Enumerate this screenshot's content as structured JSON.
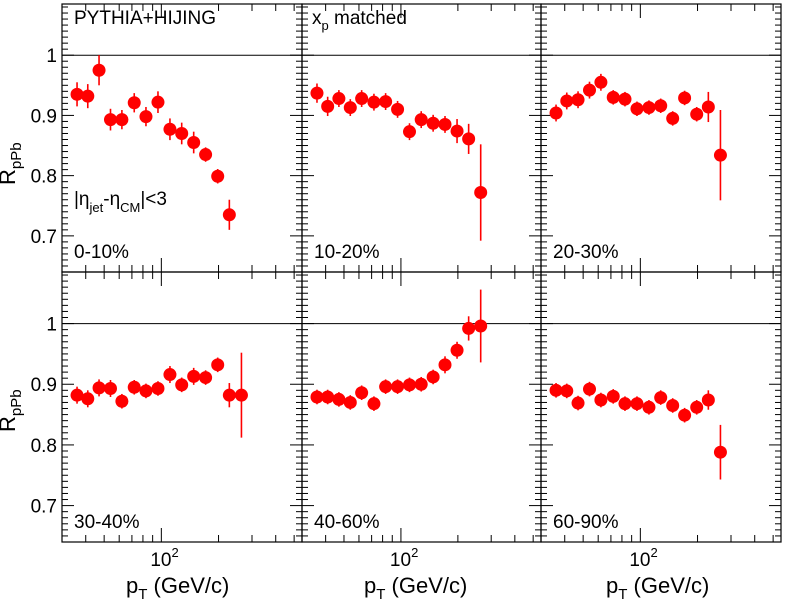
{
  "chart_data": {
    "type": "scatter",
    "marker_color": "#ff0000",
    "ylabel_main": "R",
    "ylabel_sub": "pPb",
    "xlabel_main": "p",
    "xlabel_sub": "T",
    "xlabel_unit": " (GeV/c)",
    "xscale": "log",
    "xlim": [
      30,
      550
    ],
    "ylim": [
      0.64,
      1.085
    ],
    "reference_line": 1.0,
    "y_ticks": [
      "0.7",
      "0.8",
      "0.9",
      "1"
    ],
    "x_tick_base": "10",
    "x_tick_exp": "2",
    "annotations": {
      "generator": "PYTHIA+HIJING",
      "matching_main": "x",
      "matching_sub": "p",
      "matching_rest": " matched",
      "eta_cut_parts": [
        "|η",
        "jet",
        "-η",
        "CM",
        "|<3"
      ]
    },
    "x": [
      36,
      41,
      47,
      54,
      62,
      72,
      83,
      96,
      111,
      128,
      148,
      171,
      198,
      228,
      264,
      305,
      352,
      406,
      470
    ],
    "panels": [
      {
        "label": "0-10%",
        "y": [
          0.935,
          0.932,
          0.975,
          0.893,
          0.893,
          0.921,
          0.898,
          0.922,
          0.877,
          0.87,
          0.855,
          0.835,
          0.799,
          0.735
        ],
        "err": [
          0.02,
          0.02,
          0.025,
          0.018,
          0.016,
          0.016,
          0.016,
          0.018,
          0.018,
          0.018,
          0.018,
          0.012,
          0.012,
          0.025
        ]
      },
      {
        "label": "10-20%",
        "y": [
          0.937,
          0.915,
          0.928,
          0.913,
          0.928,
          0.922,
          0.923,
          0.91,
          0.873,
          0.893,
          0.887,
          0.885,
          0.874,
          0.861,
          0.772
        ],
        "err": [
          0.016,
          0.016,
          0.014,
          0.014,
          0.014,
          0.014,
          0.014,
          0.014,
          0.014,
          0.014,
          0.014,
          0.014,
          0.02,
          0.025,
          0.08
        ]
      },
      {
        "label": "20-30%",
        "y": [
          0.904,
          0.924,
          0.926,
          0.942,
          0.955,
          0.93,
          0.927,
          0.911,
          0.913,
          0.916,
          0.895,
          0.929,
          0.902,
          0.914,
          0.834
        ],
        "err": [
          0.014,
          0.014,
          0.014,
          0.014,
          0.014,
          0.012,
          0.012,
          0.012,
          0.012,
          0.012,
          0.012,
          0.012,
          0.012,
          0.025,
          0.075
        ]
      },
      {
        "label": "30-40%",
        "y": [
          0.882,
          0.876,
          0.894,
          0.893,
          0.872,
          0.895,
          0.889,
          0.893,
          0.916,
          0.899,
          0.913,
          0.911,
          0.932,
          0.882,
          0.882
        ],
        "err": [
          0.014,
          0.014,
          0.014,
          0.014,
          0.012,
          0.012,
          0.012,
          0.012,
          0.014,
          0.012,
          0.014,
          0.012,
          0.012,
          0.02,
          0.07
        ]
      },
      {
        "label": "40-60%",
        "y": [
          0.879,
          0.879,
          0.875,
          0.87,
          0.886,
          0.868,
          0.896,
          0.896,
          0.899,
          0.9,
          0.912,
          0.932,
          0.956,
          0.992,
          0.996
        ],
        "err": [
          0.012,
          0.012,
          0.012,
          0.012,
          0.012,
          0.012,
          0.012,
          0.012,
          0.012,
          0.012,
          0.012,
          0.014,
          0.014,
          0.02,
          0.06
        ]
      },
      {
        "label": "60-90%",
        "y": [
          0.89,
          0.889,
          0.869,
          0.892,
          0.874,
          0.88,
          0.868,
          0.868,
          0.862,
          0.878,
          0.865,
          0.849,
          0.862,
          0.874,
          0.788
        ],
        "err": [
          0.012,
          0.012,
          0.012,
          0.012,
          0.012,
          0.012,
          0.012,
          0.012,
          0.012,
          0.012,
          0.012,
          0.012,
          0.012,
          0.016,
          0.045
        ]
      }
    ]
  }
}
